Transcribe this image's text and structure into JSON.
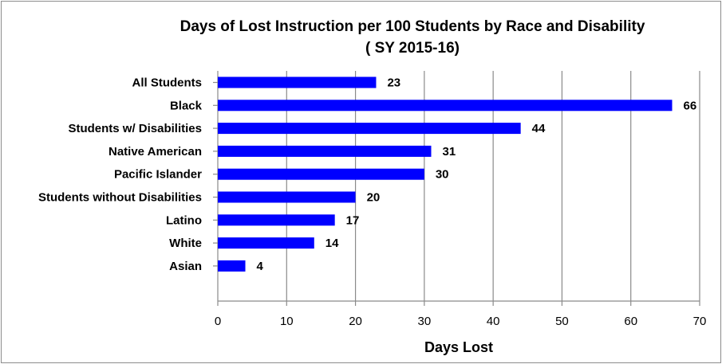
{
  "chart_data": {
    "type": "bar",
    "orientation": "horizontal",
    "title": "Days of Lost Instruction per 100 Students by Race and Disability",
    "subtitle": "( SY 2015-16)",
    "xlabel": "Days Lost",
    "ylabel": "",
    "xlim": [
      0,
      70
    ],
    "x_ticks": [
      "0",
      "10",
      "20",
      "30",
      "40",
      "50",
      "60",
      "70"
    ],
    "grid": "vertical",
    "legend": "none",
    "bar_color": "#0000ff",
    "categories": [
      "All Students",
      "Black",
      "Students w/ Disabilities",
      "Native American",
      "Pacific Islander",
      "Students without Disabilities",
      "Latino",
      "White",
      "Asian"
    ],
    "values": [
      23,
      66,
      44,
      31,
      30,
      20,
      17,
      14,
      4
    ]
  }
}
